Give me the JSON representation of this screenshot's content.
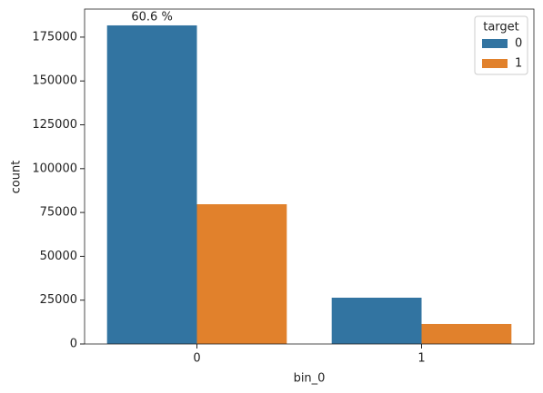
{
  "chart_data": {
    "type": "bar",
    "categories": [
      "0",
      "1"
    ],
    "series": [
      {
        "name": "0",
        "color": "#3274a1",
        "values": [
          181700,
          26400
        ]
      },
      {
        "name": "1",
        "color": "#e1812c",
        "values": [
          79700,
          11400
        ]
      }
    ],
    "annotations": [
      {
        "text": "60.6 %"
      }
    ],
    "x_label": "bin_0",
    "y_label": "count",
    "legend_title": "target",
    "legend_position": "upper right",
    "ylim": [
      0,
      191000
    ],
    "yticks": [
      0,
      25000,
      50000,
      75000,
      100000,
      125000,
      150000,
      175000
    ],
    "grid": false
  }
}
